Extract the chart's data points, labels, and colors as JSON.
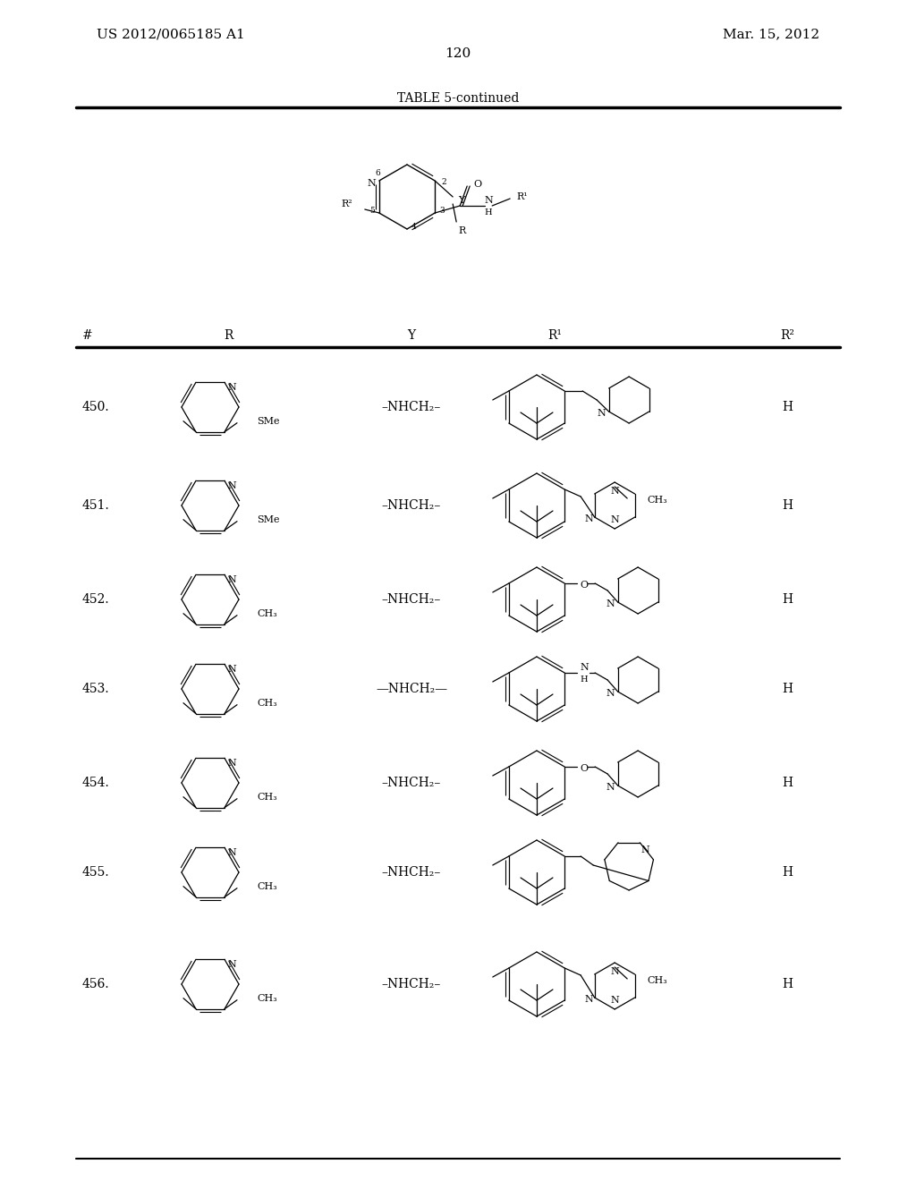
{
  "bg": "#ffffff",
  "header_left": "US 2012/0065185 A1",
  "header_right": "Mar. 15, 2012",
  "page_num": "120",
  "table_title": "TABLE 5-continued",
  "col_h": [
    "#",
    "R",
    "Y",
    "R¹",
    "R²"
  ],
  "rows": [
    "450.",
    "451.",
    "452.",
    "453.",
    "454.",
    "455.",
    "456."
  ],
  "Y_col": [
    "–NHCH₂–",
    "–NHCH₂–",
    "–NHCH₂–",
    "—NHCH₂—",
    "–NHCH₂–",
    "–NHCH₂–",
    "–NHCH₂–"
  ],
  "R2_col": [
    "H",
    "H",
    "H",
    "H",
    "H",
    "H",
    "H"
  ],
  "R_subs": [
    "SMe",
    "SMe",
    "CH₃",
    "CH₃",
    "CH₃",
    "CH₃",
    "CH₃"
  ]
}
